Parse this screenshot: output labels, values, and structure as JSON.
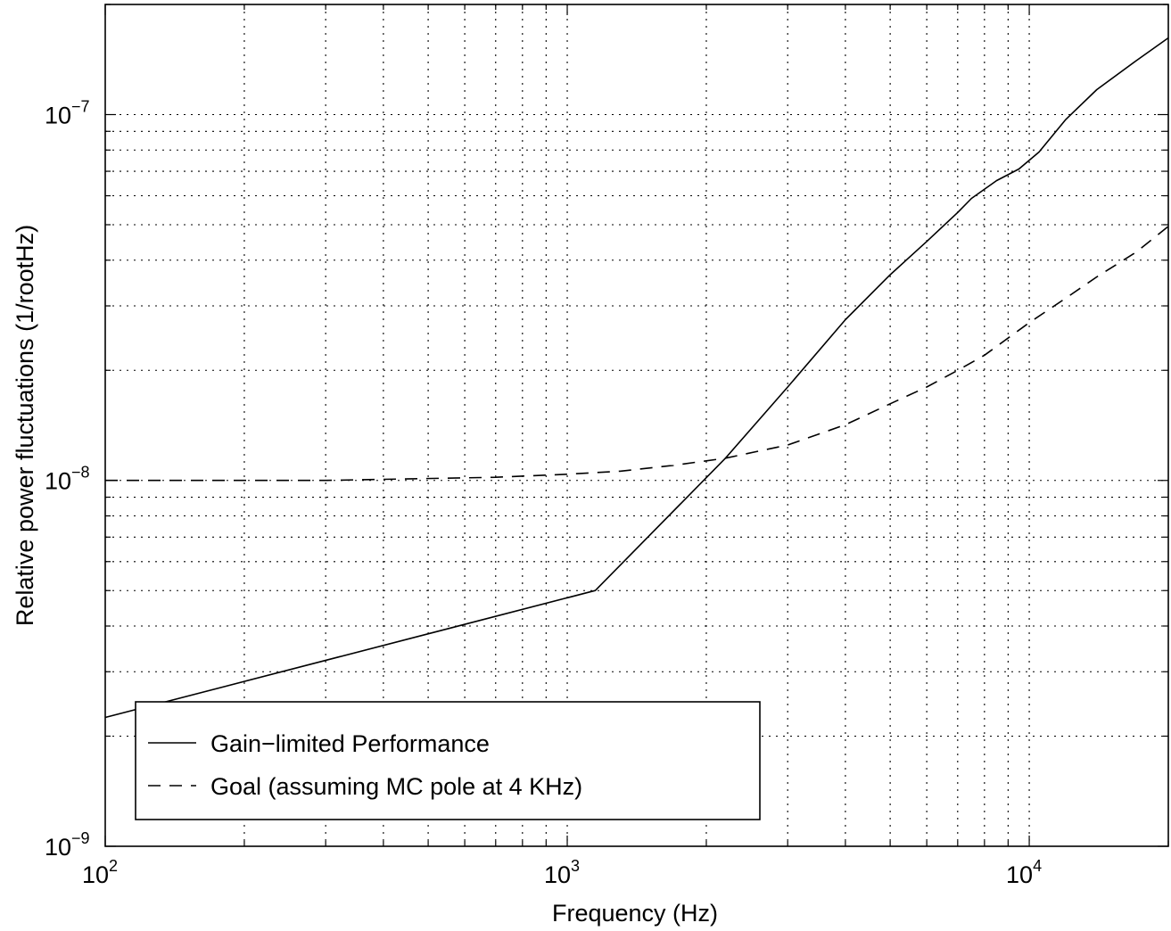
{
  "chart_data": {
    "type": "line",
    "title": "",
    "xlabel": "Frequency (Hz)",
    "ylabel": "Relative power fluctuations (1/rootHz)",
    "xscale": "log",
    "yscale": "log",
    "xlim": [
      100,
      20000
    ],
    "ylim": [
      1e-09,
      2e-07
    ],
    "grid": true,
    "grid_style": "dotted",
    "legend_placement": "bottom-left",
    "x_ticks": [
      {
        "value": 100,
        "base": "10",
        "exp": "2"
      },
      {
        "value": 1000,
        "base": "10",
        "exp": "3"
      },
      {
        "value": 10000,
        "base": "10",
        "exp": "4"
      }
    ],
    "y_ticks": [
      {
        "value": 1e-09,
        "base": "10",
        "exp": "−9"
      },
      {
        "value": 1e-08,
        "base": "10",
        "exp": "−8"
      },
      {
        "value": 1e-07,
        "base": "10",
        "exp": "−7"
      }
    ],
    "series": [
      {
        "name": "Gain−limited Performance",
        "style": "solid",
        "color": "#000000",
        "points": [
          [
            100,
            2.25e-09
          ],
          [
            1150,
            5e-09
          ],
          [
            2200,
            1.15e-08
          ],
          [
            3000,
            1.8e-08
          ],
          [
            4000,
            2.75e-08
          ],
          [
            5000,
            3.65e-08
          ],
          [
            6000,
            4.5e-08
          ],
          [
            7000,
            5.4e-08
          ],
          [
            7500,
            5.9e-08
          ],
          [
            8500,
            6.6e-08
          ],
          [
            9500,
            7.1e-08
          ],
          [
            10500,
            7.9e-08
          ],
          [
            12000,
            9.7e-08
          ],
          [
            14000,
            1.17e-07
          ],
          [
            17000,
            1.4e-07
          ],
          [
            20000,
            1.62e-07
          ]
        ]
      },
      {
        "name": "Goal (assuming MC pole at 4 KHz)",
        "style": "dashed",
        "color": "#000000",
        "points": [
          [
            100,
            1e-08
          ],
          [
            300,
            1e-08
          ],
          [
            700,
            1.02e-08
          ],
          [
            1000,
            1.04e-08
          ],
          [
            1300,
            1.06e-08
          ],
          [
            1700,
            1.1e-08
          ],
          [
            2200,
            1.15e-08
          ],
          [
            3000,
            1.25e-08
          ],
          [
            4000,
            1.42e-08
          ],
          [
            5000,
            1.62e-08
          ],
          [
            6000,
            1.8e-08
          ],
          [
            7000,
            2e-08
          ],
          [
            8000,
            2.2e-08
          ],
          [
            10000,
            2.7e-08
          ],
          [
            12000,
            3.15e-08
          ],
          [
            14000,
            3.6e-08
          ],
          [
            17000,
            4.2e-08
          ],
          [
            20000,
            4.95e-08
          ]
        ]
      }
    ]
  }
}
